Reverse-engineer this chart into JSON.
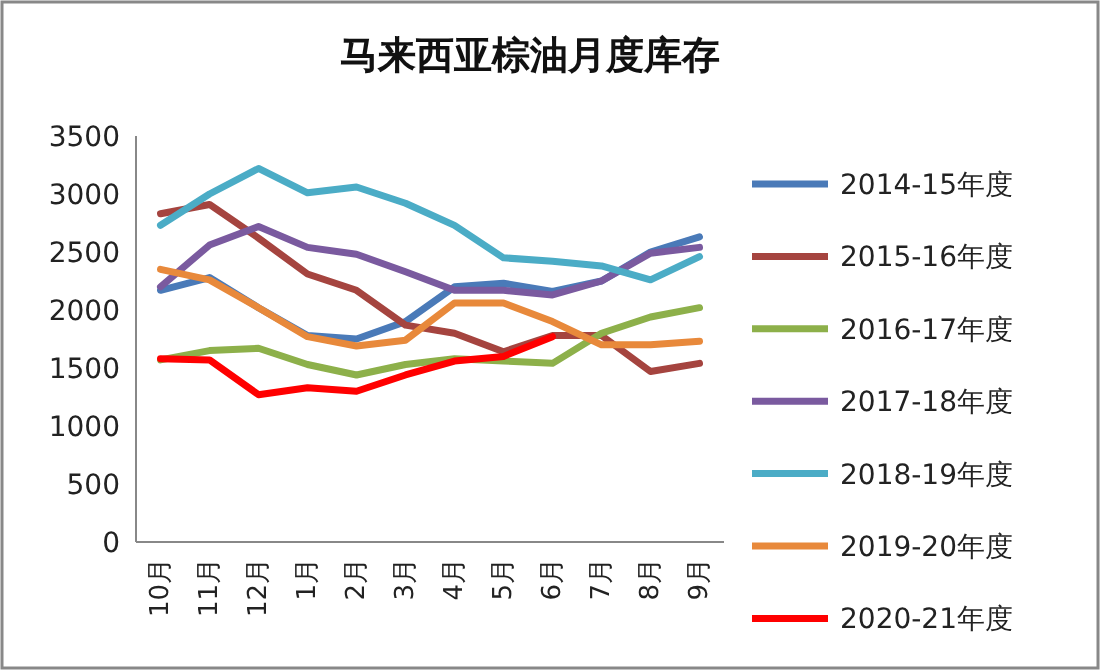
{
  "chart_data": {
    "type": "line",
    "title": "马来西亚棕油月度库存",
    "categories": [
      "10月",
      "11月",
      "12月",
      "1月",
      "2月",
      "3月",
      "4月",
      "5月",
      "6月",
      "7月",
      "8月",
      "9月"
    ],
    "ylim": [
      0,
      3500
    ],
    "yticks": [
      0,
      500,
      1000,
      1500,
      2000,
      2500,
      3000,
      3500
    ],
    "grid": false,
    "legend": "right",
    "marker": "none",
    "line_style": "solid",
    "series": [
      {
        "name": "2014-15年度",
        "color": "#4a7ab8",
        "values": [
          2170,
          2280,
          2020,
          1780,
          1750,
          1900,
          2200,
          2230,
          2160,
          2250,
          2500,
          2630
        ]
      },
      {
        "name": "2015-16年度",
        "color": "#a5443f",
        "values": [
          2830,
          2910,
          2620,
          2310,
          2170,
          1870,
          1800,
          1640,
          1780,
          1780,
          1470,
          1540
        ]
      },
      {
        "name": "2016-17年度",
        "color": "#8db04a",
        "values": [
          1570,
          1650,
          1670,
          1530,
          1440,
          1530,
          1580,
          1560,
          1540,
          1800,
          1940,
          2020
        ]
      },
      {
        "name": "2017-18年度",
        "color": "#7a5a9f",
        "values": [
          2200,
          2560,
          2720,
          2540,
          2480,
          2330,
          2170,
          2170,
          2130,
          2250,
          2490,
          2540
        ]
      },
      {
        "name": "2018-19年度",
        "color": "#4bacc6",
        "values": [
          2730,
          3000,
          3220,
          3010,
          3060,
          2920,
          2730,
          2450,
          2420,
          2380,
          2260,
          2460
        ]
      },
      {
        "name": "2019-20年度",
        "color": "#e8893b",
        "values": [
          2350,
          2260,
          2020,
          1770,
          1690,
          1740,
          2060,
          2060,
          1900,
          1700,
          1700,
          1730
        ]
      },
      {
        "name": "2020-21年度",
        "color": "#ff0000",
        "values": [
          1580,
          1570,
          1270,
          1330,
          1300,
          1440,
          1560,
          1600,
          1770,
          null,
          null,
          null
        ]
      }
    ]
  }
}
